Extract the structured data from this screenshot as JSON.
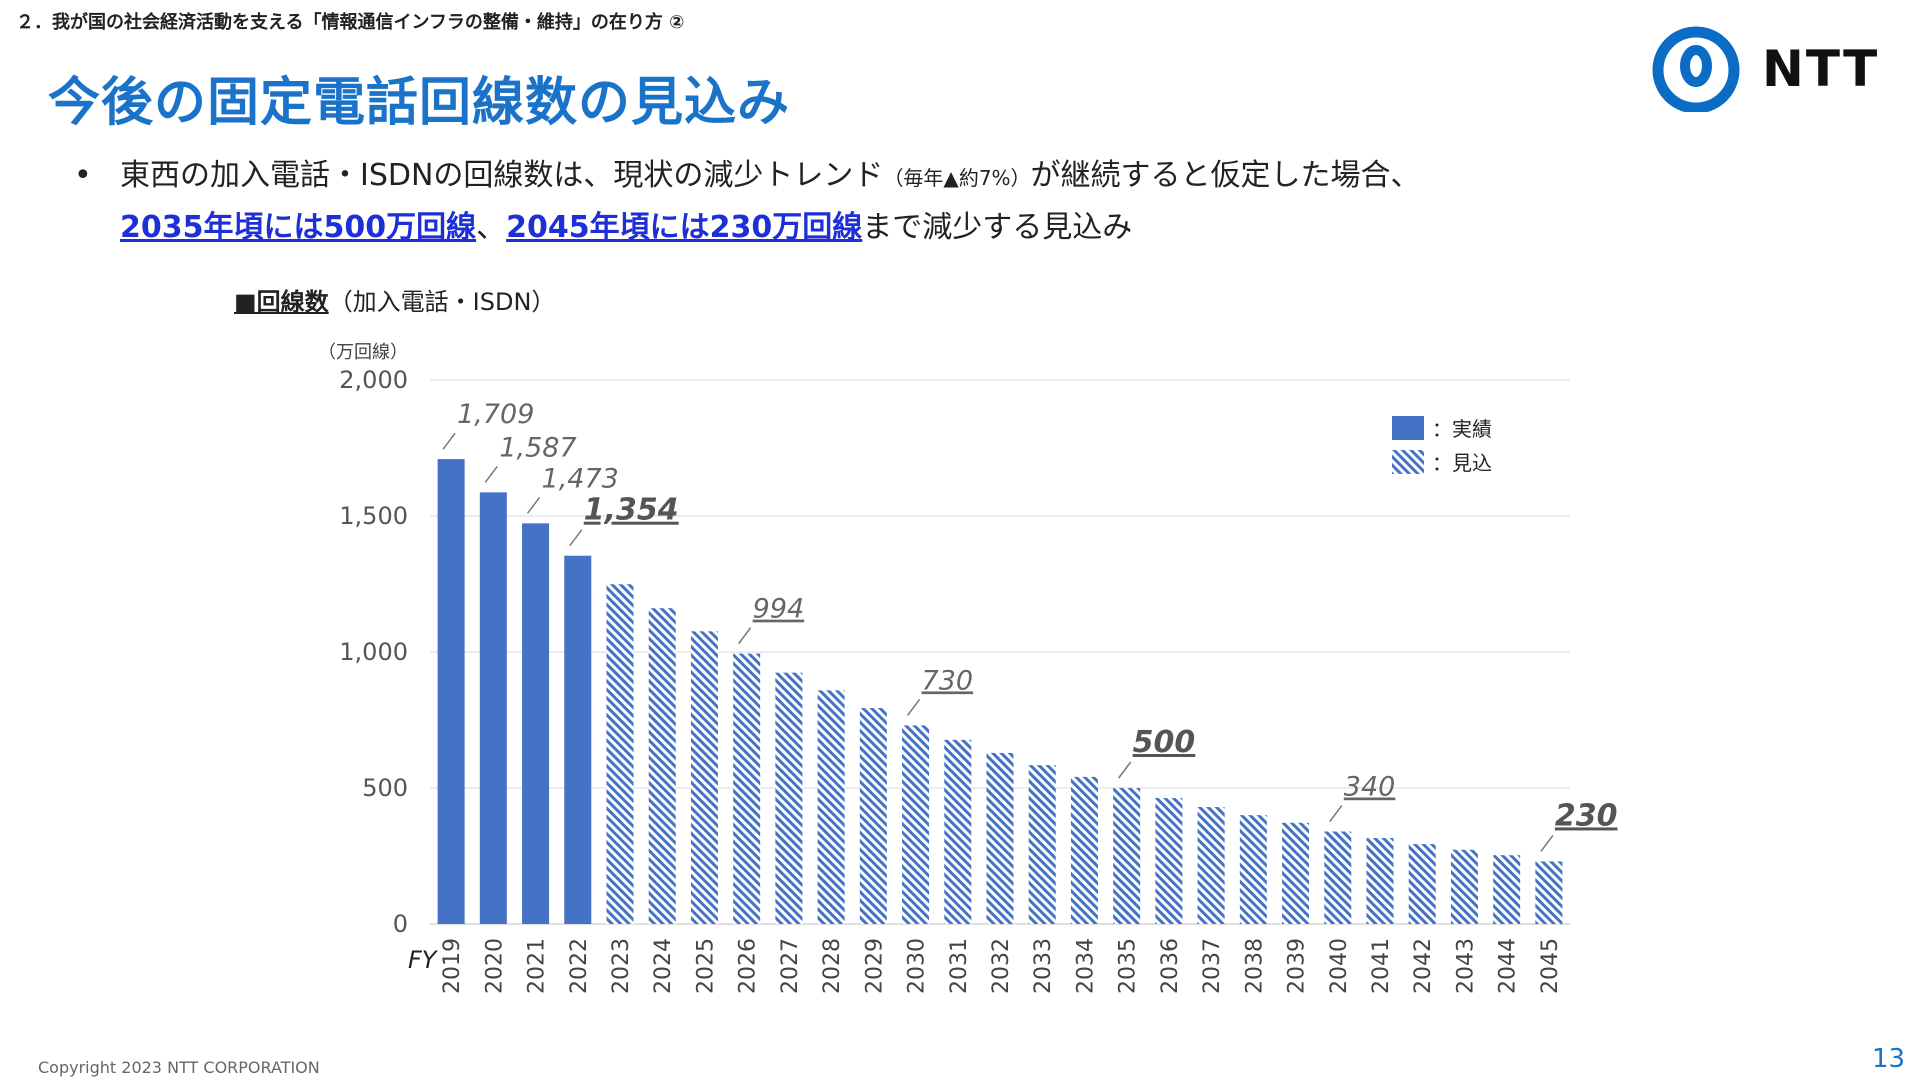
{
  "header": {
    "breadcrumb": "２．我が国の社会経済活動を支える「情報通信インフラの整備・維持」の在り方 ②",
    "title": "今後の固定電話回線数の見込み",
    "logo_text": "NTT"
  },
  "bullet": {
    "line1_main": "東西の加入電話・ISDNの回線数は、現状の減少トレンド",
    "line1_note": "（毎年▲約7%）",
    "line1_end": "が継続すると仮定した場合、",
    "line2_hl1": "2035年頃には500万回線",
    "line2_sep": "、",
    "line2_hl2": "2045年頃には230万回線",
    "line2_end": "まで減少する見込み"
  },
  "chart_heading": {
    "strong": "■回線数",
    "rest": "（加入電話・ISDN）"
  },
  "chart_data": {
    "type": "bar",
    "title": "回線数（加入電話・ISDN）",
    "ylabel": "（万回線）",
    "xlabel": "FY",
    "ylim": [
      0,
      2000
    ],
    "yticks": [
      0,
      500,
      1000,
      1500,
      2000
    ],
    "ytick_labels": [
      "0",
      "500",
      "1,000",
      "1,500",
      "2,000"
    ],
    "grid": true,
    "legend": [
      {
        "name": "：実績",
        "style": "solid"
      },
      {
        "name": "：見込",
        "style": "hatched"
      }
    ],
    "legend_position": "top-right",
    "categories": [
      "2019",
      "2020",
      "2021",
      "2022",
      "2023",
      "2024",
      "2025",
      "2026",
      "2027",
      "2028",
      "2029",
      "2030",
      "2031",
      "2032",
      "2033",
      "2034",
      "2035",
      "2036",
      "2037",
      "2038",
      "2039",
      "2040",
      "2041",
      "2042",
      "2043",
      "2044",
      "2045"
    ],
    "values": [
      1709,
      1587,
      1473,
      1354,
      1249,
      1161,
      1076,
      994,
      924,
      859,
      794,
      730,
      677,
      629,
      584,
      541,
      500,
      463,
      430,
      400,
      372,
      340,
      316,
      294,
      273,
      253,
      230
    ],
    "kinds": [
      "actual",
      "actual",
      "actual",
      "actual",
      "forecast",
      "forecast",
      "forecast",
      "forecast",
      "forecast",
      "forecast",
      "forecast",
      "forecast",
      "forecast",
      "forecast",
      "forecast",
      "forecast",
      "forecast",
      "forecast",
      "forecast",
      "forecast",
      "forecast",
      "forecast",
      "forecast",
      "forecast",
      "forecast",
      "forecast",
      "forecast"
    ],
    "annotations": [
      {
        "index": 0,
        "text": "1,709",
        "emphasis": false
      },
      {
        "index": 1,
        "text": "1,587",
        "emphasis": false
      },
      {
        "index": 2,
        "text": "1,473",
        "emphasis": false
      },
      {
        "index": 3,
        "text": "1,354",
        "emphasis": true
      },
      {
        "index": 7,
        "text": "994",
        "emphasis": false
      },
      {
        "index": 11,
        "text": "730",
        "emphasis": false
      },
      {
        "index": 16,
        "text": "500",
        "emphasis": true
      },
      {
        "index": 21,
        "text": "340",
        "emphasis": false
      },
      {
        "index": 26,
        "text": "230",
        "emphasis": true
      }
    ],
    "colors": {
      "bar": "#4472c4",
      "grid": "#d9d9d9",
      "axis_text": "#555555",
      "label": "#666666",
      "emphasis_label": "#555555"
    }
  },
  "footer": {
    "copyright": "Copyright 2023 NTT CORPORATION",
    "page_number": "13"
  }
}
